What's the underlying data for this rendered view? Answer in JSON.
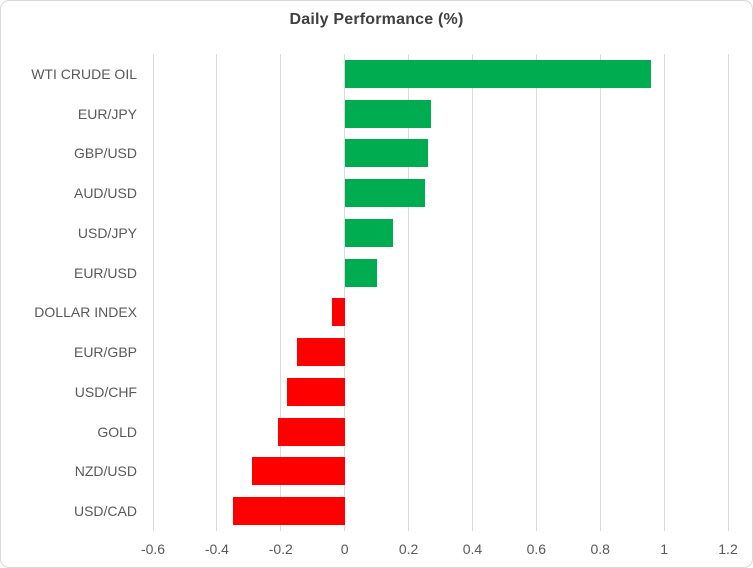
{
  "title": "Daily Performance (%)",
  "chart_data": {
    "type": "bar",
    "orientation": "horizontal",
    "title": "Daily Performance (%)",
    "categories": [
      "WTI CRUDE OIL",
      "EUR/JPY",
      "GBP/USD",
      "AUD/USD",
      "USD/JPY",
      "EUR/USD",
      "DOLLAR INDEX",
      "EUR/GBP",
      "USD/CHF",
      "GOLD",
      "NZD/USD",
      "USD/CAD"
    ],
    "values": [
      0.96,
      0.27,
      0.26,
      0.25,
      0.15,
      0.1,
      -0.04,
      -0.15,
      -0.18,
      -0.21,
      -0.29,
      -0.35
    ],
    "xlabel": "",
    "ylabel": "",
    "xlim": [
      -0.6,
      1.2
    ],
    "x_tick_labels": [
      "-0.6",
      "-0.4",
      "-0.2",
      "0",
      "0.2",
      "0.4",
      "0.6",
      "0.8",
      "1",
      "1.2"
    ],
    "x_tick_values": [
      -0.6,
      -0.4,
      -0.2,
      0,
      0.2,
      0.4,
      0.6,
      0.8,
      1,
      1.2
    ],
    "grid": "vertical",
    "legend": "none",
    "colors": {
      "positive": "#00AC50",
      "negative": "#FF0000",
      "gridline": "#D9D9D9",
      "title_text": "#404040",
      "axis_text": "#595959",
      "border": "#D9D9D9"
    }
  }
}
